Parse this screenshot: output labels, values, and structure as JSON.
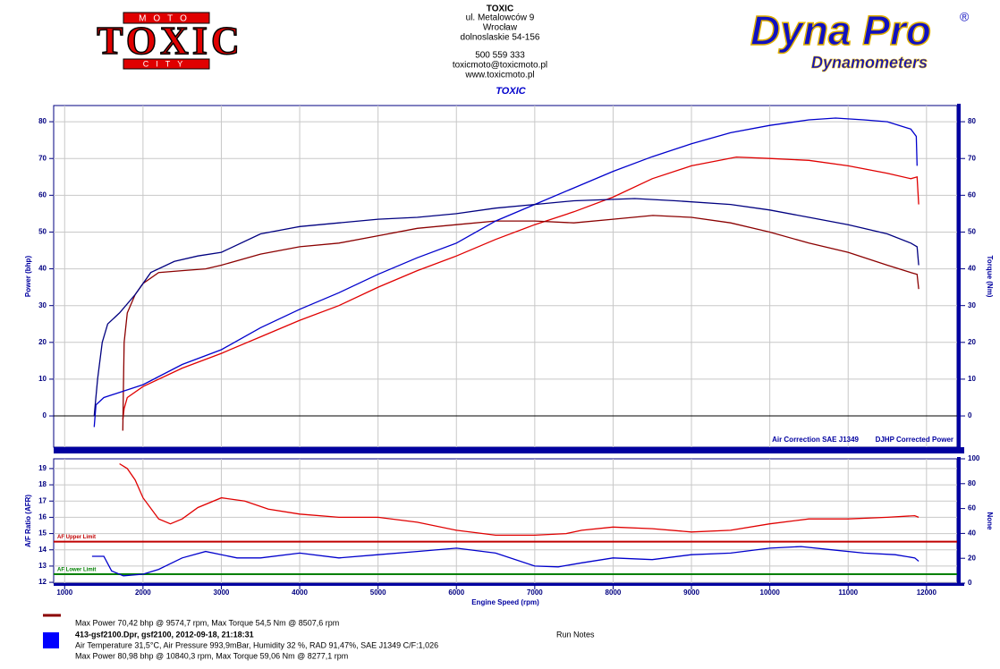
{
  "header": {
    "logo": {
      "top": "MOTO",
      "main": "TOXIC",
      "bottom": "CITY"
    },
    "company": [
      "TOXIC",
      "ul. Metalowców 9",
      "Wrocław",
      "dolnoslaskie 54-156",
      "500 559 333",
      "toxicmoto@toxicmoto.pl",
      "www.toxicmoto.pl"
    ],
    "brand": "Dyna Pro",
    "brand_sub": "Dynamometers",
    "brand_mark": "®",
    "title": "TOXIC"
  },
  "chart_data": [
    {
      "type": "line",
      "ylabel": "Power (bhp)",
      "y2label": "Torque (Nm)",
      "annotations": [
        "Air Correction SAE J1349",
        "DJHP Corrected Power"
      ],
      "xlim": [
        860,
        12390
      ],
      "xticks": [
        1000,
        2000,
        3000,
        4000,
        5000,
        6000,
        7000,
        8000,
        9000,
        10000,
        11000,
        12000
      ],
      "show_xtick_labels": false,
      "ylim": [
        -8.5,
        84.4
      ],
      "yticks": [
        0,
        10,
        20,
        30,
        40,
        50,
        60,
        70,
        80
      ],
      "y2lim": [
        -8.5,
        84.4
      ],
      "y2ticks": [
        0,
        10,
        20,
        30,
        40,
        50,
        60,
        70,
        80
      ],
      "grid": true,
      "zero_line": 0,
      "series": [
        {
          "color": "#e00000",
          "x": [
            1742,
            1760,
            1800,
            2000,
            2500,
            3000,
            3500,
            4000,
            4500,
            5000,
            5500,
            6000,
            6500,
            7000,
            7500,
            8000,
            8500,
            9000,
            9574,
            10000,
            10500,
            11000,
            11500,
            11800,
            11880,
            11900
          ],
          "values": [
            -1,
            2,
            5,
            8,
            13,
            17,
            21.5,
            26,
            30,
            35,
            39.5,
            43.5,
            48,
            52,
            55.5,
            59.5,
            64.5,
            68,
            70.4,
            70,
            69.5,
            68,
            66,
            64.5,
            65,
            57.5
          ]
        },
        {
          "color": "#8b0000",
          "x": [
            1742,
            1750,
            1760,
            1800,
            1900,
            2000,
            2200,
            2500,
            2800,
            3000,
            3500,
            4000,
            4500,
            5000,
            5500,
            6000,
            6500,
            7000,
            7500,
            8000,
            8508,
            9000,
            9500,
            10000,
            10500,
            11000,
            11500,
            11800,
            11880,
            11900
          ],
          "values": [
            -4,
            8,
            20,
            28,
            33,
            36,
            39,
            39.5,
            40,
            41,
            44,
            46,
            47,
            49,
            51,
            52,
            53,
            53,
            52.5,
            53.5,
            54.5,
            54,
            52.5,
            50,
            47,
            44.5,
            41,
            39,
            38.5,
            34.5
          ]
        },
        {
          "color": "#0000cc",
          "x": [
            1377,
            1400,
            1500,
            2000,
            2500,
            3000,
            3500,
            4000,
            4500,
            5000,
            5500,
            6000,
            6500,
            7000,
            7500,
            8000,
            8500,
            9000,
            9500,
            10000,
            10500,
            10840,
            11200,
            11500,
            11800,
            11870,
            11880
          ],
          "values": [
            -3,
            3,
            5,
            8.5,
            14,
            18,
            24,
            29,
            33.5,
            38.5,
            43,
            47,
            53,
            57.5,
            62,
            66.5,
            70.5,
            74,
            77,
            79,
            80.5,
            81,
            80.5,
            80,
            78,
            76,
            68
          ]
        },
        {
          "color": "#000080",
          "x": [
            1377,
            1420,
            1480,
            1550,
            1700,
            1900,
            2100,
            2400,
            2700,
            3000,
            3500,
            4000,
            4500,
            5000,
            5500,
            6000,
            6500,
            7000,
            7500,
            8277,
            8800,
            9500,
            10000,
            10500,
            11000,
            11500,
            11800,
            11880,
            11900
          ],
          "values": [
            0,
            10,
            20,
            25,
            28,
            33,
            39,
            42,
            43.5,
            44.5,
            49.5,
            51.5,
            52.5,
            53.5,
            54,
            55,
            56.5,
            57.5,
            58.5,
            59.1,
            58.5,
            57.5,
            56,
            54,
            52,
            49.5,
            47,
            46,
            41
          ]
        }
      ]
    },
    {
      "type": "line",
      "xlabel": "Engine Speed (rpm)",
      "ylabel": "A/F Ratio (AFR)",
      "y2label": "None",
      "xlim": [
        860,
        12390
      ],
      "xticks": [
        1000,
        2000,
        3000,
        4000,
        5000,
        6000,
        7000,
        8000,
        9000,
        10000,
        11000,
        12000
      ],
      "show_xtick_labels": true,
      "ylim": [
        11.95,
        19.6
      ],
      "yticks": [
        12,
        13,
        14,
        15,
        16,
        17,
        18,
        19
      ],
      "y2lim": [
        0,
        100
      ],
      "y2ticks": [
        0,
        20,
        40,
        60,
        80,
        100
      ],
      "grid": true,
      "limits": [
        {
          "label": "AF Upper Limit",
          "value": 14.5,
          "color": "#c00000"
        },
        {
          "label": "AF Lower Limit",
          "value": 12.5,
          "color": "#008000"
        }
      ],
      "series": [
        {
          "color": "#e00000",
          "x": [
            1700,
            1800,
            1900,
            2000,
            2200,
            2350,
            2500,
            2700,
            3000,
            3300,
            3600,
            4000,
            4500,
            5000,
            5500,
            6000,
            6500,
            7000,
            7400,
            7600,
            8000,
            8500,
            9000,
            9500,
            10000,
            10500,
            11000,
            11500,
            11850,
            11900
          ],
          "values": [
            19.3,
            19,
            18.3,
            17.2,
            15.9,
            15.6,
            15.9,
            16.6,
            17.2,
            17,
            16.5,
            16.2,
            16,
            16,
            15.7,
            15.2,
            14.9,
            14.9,
            15,
            15.2,
            15.4,
            15.3,
            15.1,
            15.2,
            15.6,
            15.9,
            15.9,
            16,
            16.1,
            16
          ]
        },
        {
          "color": "#0000cc",
          "x": [
            1350,
            1500,
            1600,
            1750,
            2000,
            2200,
            2500,
            2800,
            3200,
            3500,
            4000,
            4500,
            5000,
            5500,
            6000,
            6500,
            7000,
            7300,
            7600,
            8000,
            8500,
            9000,
            9500,
            10000,
            10400,
            10800,
            11200,
            11600,
            11850,
            11900
          ],
          "values": [
            13.6,
            13.6,
            12.7,
            12.4,
            12.5,
            12.8,
            13.5,
            13.9,
            13.5,
            13.5,
            13.8,
            13.5,
            13.7,
            13.9,
            14.1,
            13.8,
            13,
            12.95,
            13.2,
            13.5,
            13.4,
            13.7,
            13.8,
            14.1,
            14.2,
            14,
            13.8,
            13.7,
            13.5,
            13.3
          ]
        }
      ]
    }
  ],
  "footer": {
    "run1": {
      "color": "#8b0000",
      "max": "Max Power 70,42 bhp @ 9574,7 rpm, Max Torque 54,5 Nm @ 8507,6 rpm"
    },
    "run2": {
      "color": "#0000ff",
      "file": "413-gsf2100.Dpr,   gsf2100,   2012-09-18,   21:18:31",
      "conditions": "Air Temperature 31,5°C, Air Pressure 993,9mBar, Humidity 32 %, RAD 91,47%,   SAE J1349  C/F:1,026",
      "max": "Max Power 80,98 bhp @ 10840,3 rpm, Max Torque 59,06 Nm @ 8277,1 rpm"
    },
    "notes": "Run Notes"
  }
}
